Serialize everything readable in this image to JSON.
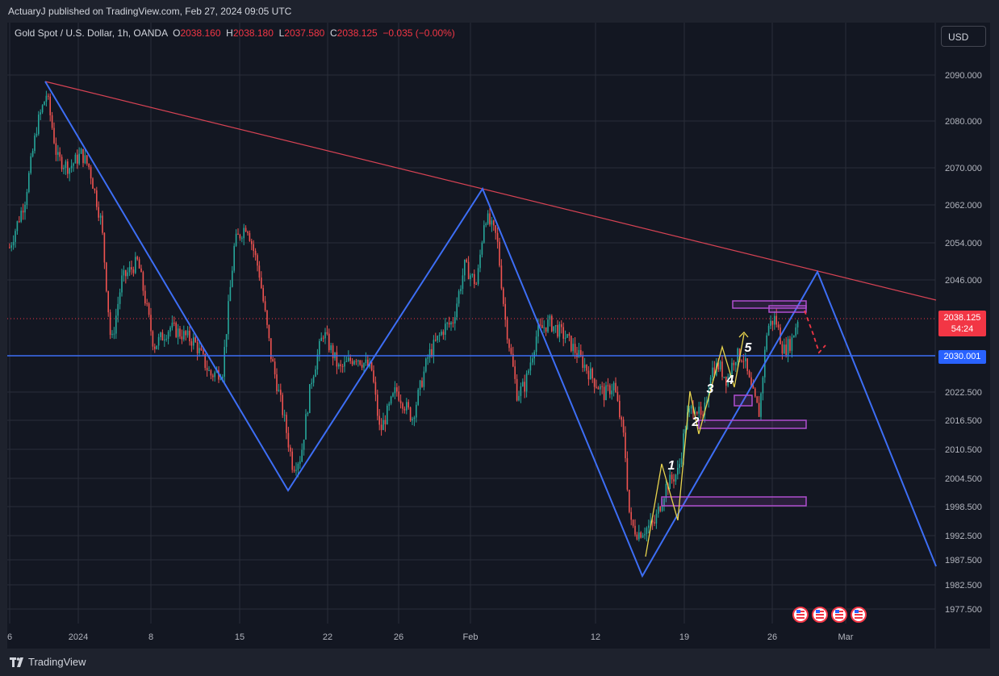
{
  "header": {
    "publish_text": "ActuaryJ published on TradingView.com, Feb 27, 2024 09:05 UTC"
  },
  "legend": {
    "symbol": "Gold Spot / U.S. Dollar, 1h, OANDA",
    "o_label": "O",
    "o_value": "2038.160",
    "h_label": "H",
    "h_value": "2038.180",
    "l_label": "L",
    "l_value": "2037.580",
    "c_label": "C",
    "c_value": "2038.125",
    "change": "−0.035 (−0.00%)"
  },
  "currency_button": "USD",
  "footer": {
    "logo_text": "TradingView"
  },
  "chart_data": {
    "type": "candlestick",
    "y_ticks": [
      "2090.000",
      "2080.000",
      "2070.000",
      "2062.000",
      "2054.000",
      "2046.000",
      "2022.500",
      "2016.500",
      "2010.500",
      "2004.500",
      "1998.500",
      "1992.500",
      "1987.500",
      "1982.500",
      "1977.500"
    ],
    "x_ticks": [
      "6",
      "2024",
      "8",
      "15",
      "22",
      "26",
      "Feb",
      "12",
      "19",
      "26",
      "Mar"
    ],
    "last_price": "2038.125",
    "countdown": "54:24",
    "level_price": "2030.001",
    "wave_labels": [
      "1",
      "2",
      "3",
      "4",
      "5"
    ],
    "colors": {
      "up": "#26a69a",
      "down": "#ef5350",
      "trend": "#3d6ef5",
      "resistance": "#d74354",
      "zones": "#b04fd0",
      "waves": "#e8d44d"
    }
  }
}
